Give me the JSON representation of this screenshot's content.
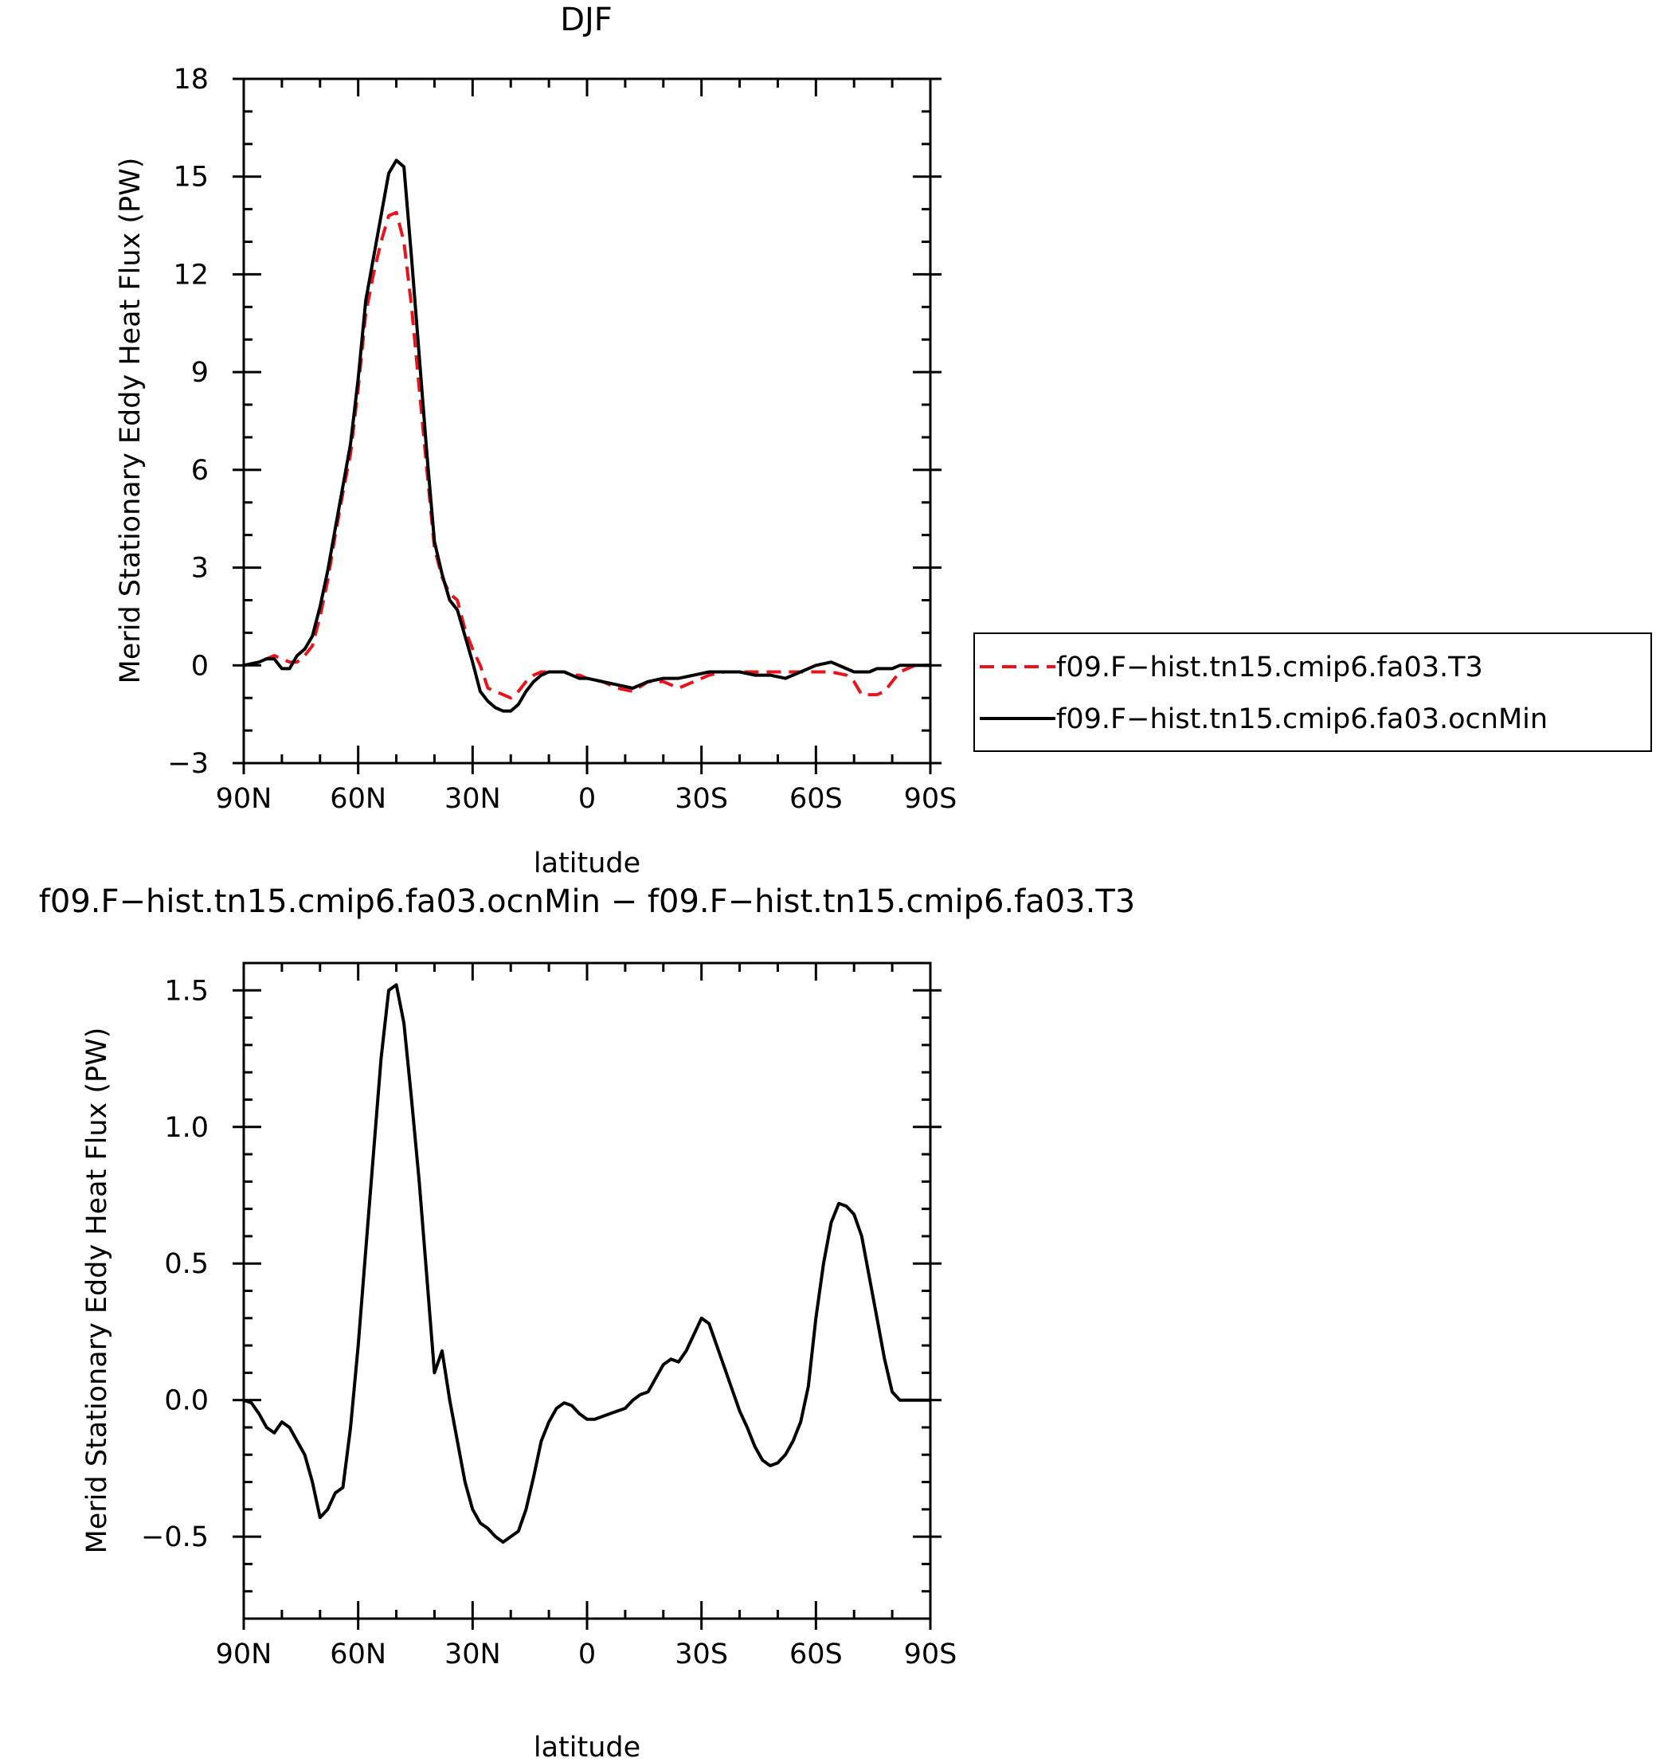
{
  "chart_data": [
    {
      "type": "line",
      "title": "DJF",
      "xlabel": "latitude",
      "ylabel": "Merid Stationary Eddy Heat Flux (PW)",
      "xlim": [
        90,
        -90
      ],
      "ylim": [
        -3,
        18
      ],
      "x_ticks": [
        90,
        60,
        30,
        0,
        -30,
        -60,
        -90
      ],
      "x_tick_labels": [
        "90N",
        "60N",
        "30N",
        "0",
        "30S",
        "60S",
        "90S"
      ],
      "y_ticks": [
        -3,
        0,
        3,
        6,
        9,
        12,
        15,
        18
      ],
      "y_tick_labels": [
        "−3",
        "0",
        "3",
        "6",
        "9",
        "12",
        "15",
        "18"
      ],
      "grid": false,
      "legend": "right",
      "series": [
        {
          "name": "f09.F−hist.tn15.cmip6.fa03.T3",
          "color": "#e8141c",
          "dash": "dashed",
          "x": [
            90,
            86,
            84,
            82,
            80,
            78,
            76,
            74,
            72,
            70,
            68,
            66,
            64,
            62,
            60,
            58,
            56,
            54,
            52,
            50,
            48,
            46,
            44,
            42,
            40,
            38,
            36,
            34,
            32,
            30,
            28,
            26,
            24,
            22,
            20,
            18,
            16,
            14,
            12,
            10,
            8,
            6,
            4,
            2,
            0,
            -4,
            -8,
            -12,
            -16,
            -20,
            -24,
            -28,
            -32,
            -36,
            -40,
            -44,
            -48,
            -52,
            -56,
            -60,
            -64,
            -68,
            -70,
            -72,
            -74,
            -76,
            -78,
            -80,
            -82,
            -84,
            -86,
            -88,
            -90
          ],
          "y": [
            0,
            0.1,
            0.2,
            0.3,
            0.2,
            0.1,
            0.1,
            0.3,
            0.6,
            1.5,
            2.6,
            4.0,
            5.3,
            6.5,
            8.5,
            10.8,
            12.0,
            13.0,
            13.8,
            13.9,
            13.0,
            11.0,
            8.5,
            6.0,
            3.6,
            2.7,
            2.2,
            2.0,
            1.1,
            0.5,
            0.0,
            -0.7,
            -0.8,
            -0.9,
            -1.0,
            -0.8,
            -0.5,
            -0.3,
            -0.2,
            -0.2,
            -0.2,
            -0.2,
            -0.3,
            -0.3,
            -0.4,
            -0.5,
            -0.7,
            -0.8,
            -0.5,
            -0.5,
            -0.7,
            -0.5,
            -0.3,
            -0.2,
            -0.2,
            -0.2,
            -0.2,
            -0.2,
            -0.2,
            -0.2,
            -0.2,
            -0.3,
            -0.5,
            -0.9,
            -0.9,
            -0.9,
            -0.8,
            -0.5,
            -0.2,
            -0.1,
            0,
            0,
            0
          ]
        },
        {
          "name": "f09.F−hist.tn15.cmip6.fa03.ocnMin",
          "color": "#000000",
          "dash": "solid",
          "x": [
            90,
            86,
            84,
            82,
            80,
            78,
            76,
            74,
            72,
            70,
            68,
            66,
            64,
            62,
            60,
            58,
            56,
            54,
            52,
            50,
            48,
            46,
            44,
            42,
            40,
            38,
            36,
            34,
            32,
            30,
            28,
            26,
            24,
            22,
            20,
            18,
            16,
            14,
            12,
            10,
            8,
            6,
            4,
            2,
            0,
            -4,
            -8,
            -12,
            -16,
            -20,
            -24,
            -28,
            -32,
            -36,
            -40,
            -44,
            -48,
            -52,
            -56,
            -60,
            -64,
            -68,
            -70,
            -72,
            -74,
            -76,
            -78,
            -80,
            -82,
            -84,
            -86,
            -88,
            -90
          ],
          "y": [
            0,
            0.1,
            0.2,
            0.2,
            -0.1,
            -0.1,
            0.3,
            0.5,
            0.9,
            1.8,
            2.9,
            4.2,
            5.5,
            6.8,
            8.8,
            11.2,
            12.5,
            13.8,
            15.1,
            15.5,
            15.3,
            12.5,
            9.5,
            6.5,
            3.8,
            2.8,
            2.0,
            1.7,
            0.9,
            0.1,
            -0.8,
            -1.1,
            -1.3,
            -1.4,
            -1.4,
            -1.2,
            -0.8,
            -0.5,
            -0.3,
            -0.2,
            -0.2,
            -0.2,
            -0.3,
            -0.4,
            -0.4,
            -0.5,
            -0.6,
            -0.7,
            -0.5,
            -0.4,
            -0.4,
            -0.3,
            -0.2,
            -0.2,
            -0.2,
            -0.3,
            -0.3,
            -0.4,
            -0.2,
            0.0,
            0.1,
            -0.1,
            -0.2,
            -0.2,
            -0.2,
            -0.1,
            -0.1,
            -0.1,
            0,
            0,
            0,
            0,
            0
          ]
        }
      ]
    },
    {
      "type": "line",
      "title": "f09.F−hist.tn15.cmip6.fa03.ocnMin − f09.F−hist.tn15.cmip6.fa03.T3",
      "xlabel": "latitude",
      "ylabel": "Merid Stationary Eddy Heat Flux (PW)",
      "xlim": [
        90,
        -90
      ],
      "ylim": [
        -0.8,
        1.6
      ],
      "x_ticks": [
        90,
        60,
        30,
        0,
        -30,
        -60,
        -90
      ],
      "x_tick_labels": [
        "90N",
        "60N",
        "30N",
        "0",
        "30S",
        "60S",
        "90S"
      ],
      "y_ticks": [
        -0.5,
        0.0,
        0.5,
        1.0,
        1.5
      ],
      "y_tick_labels": [
        "−0.5",
        "0.0",
        "0.5",
        "1.0",
        "1.5"
      ],
      "grid": false,
      "series": [
        {
          "color": "#000000",
          "dash": "solid",
          "x": [
            90,
            88,
            86,
            84,
            82,
            80,
            78,
            76,
            74,
            72,
            70,
            68,
            66,
            64,
            62,
            60,
            58,
            56,
            54,
            52,
            50,
            48,
            46,
            44,
            42,
            40,
            38,
            36,
            34,
            32,
            30,
            28,
            26,
            24,
            22,
            20,
            18,
            16,
            14,
            12,
            10,
            8,
            6,
            4,
            2,
            0,
            -2,
            -4,
            -6,
            -8,
            -10,
            -12,
            -14,
            -16,
            -18,
            -20,
            -22,
            -24,
            -26,
            -28,
            -30,
            -32,
            -34,
            -36,
            -38,
            -40,
            -42,
            -44,
            -46,
            -48,
            -50,
            -52,
            -54,
            -56,
            -58,
            -60,
            -62,
            -64,
            -66,
            -68,
            -70,
            -72,
            -74,
            -76,
            -78,
            -80,
            -82,
            -84,
            -86,
            -88,
            -90
          ],
          "y": [
            0.0,
            -0.01,
            -0.05,
            -0.1,
            -0.12,
            -0.08,
            -0.1,
            -0.15,
            -0.2,
            -0.3,
            -0.43,
            -0.4,
            -0.34,
            -0.32,
            -0.1,
            0.2,
            0.55,
            0.9,
            1.25,
            1.5,
            1.52,
            1.38,
            1.1,
            0.8,
            0.45,
            0.1,
            0.18,
            0.0,
            -0.15,
            -0.3,
            -0.4,
            -0.45,
            -0.47,
            -0.5,
            -0.52,
            -0.5,
            -0.48,
            -0.4,
            -0.28,
            -0.15,
            -0.08,
            -0.03,
            -0.01,
            -0.02,
            -0.05,
            -0.07,
            -0.07,
            -0.06,
            -0.05,
            -0.04,
            -0.03,
            0.0,
            0.02,
            0.03,
            0.08,
            0.13,
            0.15,
            0.14,
            0.18,
            0.24,
            0.3,
            0.28,
            0.2,
            0.12,
            0.04,
            -0.04,
            -0.1,
            -0.17,
            -0.22,
            -0.24,
            -0.23,
            -0.2,
            -0.15,
            -0.08,
            0.05,
            0.3,
            0.5,
            0.65,
            0.72,
            0.71,
            0.68,
            0.6,
            0.45,
            0.3,
            0.15,
            0.03,
            0.0,
            0.0,
            0.0,
            0.0,
            0.0
          ]
        }
      ]
    }
  ]
}
